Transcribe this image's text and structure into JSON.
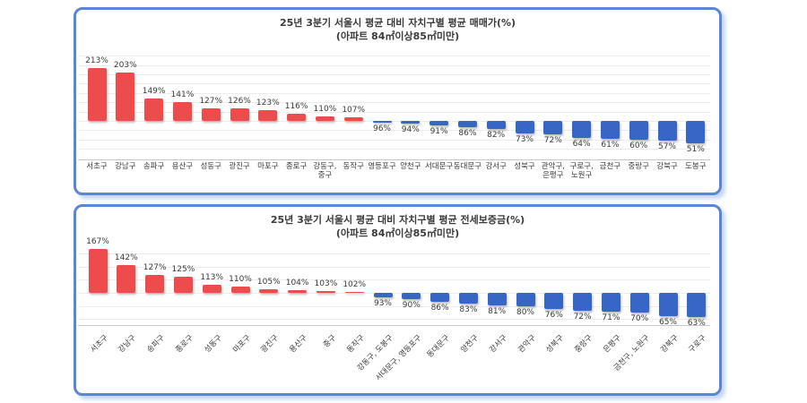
{
  "page": {
    "background": "#ffffff",
    "panel_border_color": "#5b86d8"
  },
  "chart_data": [
    {
      "type": "bar",
      "title": "25년 3분기 서울시 평균 대비 자치구별 평균 매매가(%)",
      "subtitle": "(아파트 84㎡이상85㎡미만)",
      "unit": "%",
      "baseline": 100,
      "grid": true,
      "legend": false,
      "bar_color_above_baseline": "#ee4c4c",
      "bar_color_below_baseline": "#3667c7",
      "categories": [
        "서초구",
        "강남구",
        "송파구",
        "용산구",
        "성동구",
        "광진구",
        "마포구",
        "종로구",
        "강동구, 중구",
        "동작구",
        "영등포구",
        "양천구",
        "서대문구",
        "동대문구",
        "강서구",
        "성북구",
        "관악구, 은평구",
        "구로구, 노원구",
        "금천구",
        "중랑구",
        "강북구",
        "도봉구"
      ],
      "values": [
        213,
        203,
        149,
        141,
        127,
        126,
        123,
        116,
        110,
        107,
        96,
        94,
        91,
        86,
        82,
        73,
        72,
        64,
        61,
        60,
        57,
        51
      ]
    },
    {
      "type": "bar",
      "title": "25년 3분기 서울시 평균 대비 자치구별 평균 전세보증금(%)",
      "subtitle": "(아파트 84㎡이상85㎡미만)",
      "unit": "%",
      "baseline": 100,
      "grid": true,
      "legend": false,
      "bar_color_above_baseline": "#ee4c4c",
      "bar_color_below_baseline": "#3667c7",
      "categories": [
        "서초구",
        "강남구",
        "송파구",
        "종로구",
        "성동구",
        "마포구",
        "광진구",
        "용산구",
        "중구",
        "동작구",
        "강동구, 도봉구",
        "서대문구, 영등포구",
        "동대문구",
        "양천구",
        "강서구",
        "관악구",
        "성북구",
        "중랑구",
        "은평구",
        "금천구, 노원구",
        "강북구",
        "구로구"
      ],
      "values": [
        167,
        142,
        127,
        125,
        113,
        110,
        105,
        104,
        103,
        102,
        93,
        90,
        86,
        83,
        81,
        80,
        76,
        72,
        71,
        70,
        65,
        63
      ]
    }
  ]
}
